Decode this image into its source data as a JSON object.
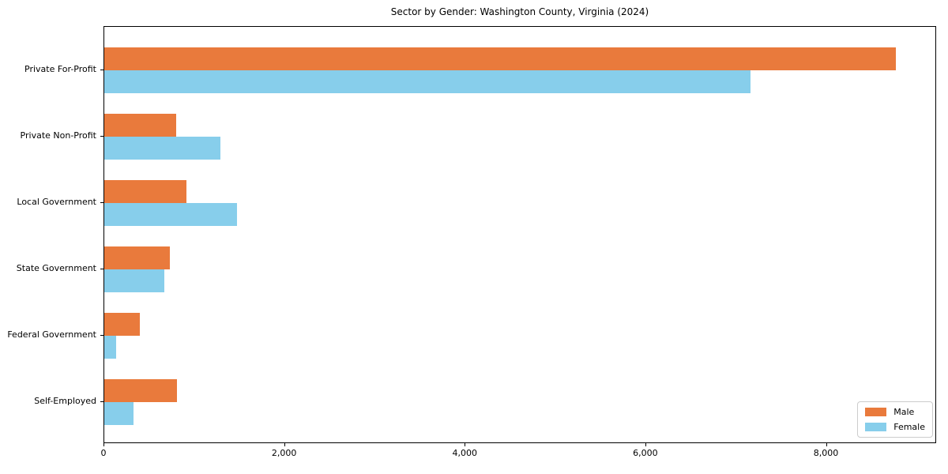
{
  "chart_data": {
    "type": "bar",
    "orientation": "horizontal",
    "title": "Sector by Gender: Washington County, Virginia (2024)",
    "xlabel": "",
    "ylabel": "",
    "grid": false,
    "categories": [
      "Private For-Profit",
      "Private Non-Profit",
      "Local Government",
      "State Government",
      "Federal Government",
      "Self-Employed"
    ],
    "series": [
      {
        "name": "Male",
        "color": "#e97a3c",
        "values": [
          8780,
          795,
          910,
          730,
          395,
          810
        ]
      },
      {
        "name": "Female",
        "color": "#87ceeb",
        "values": [
          7170,
          1290,
          1470,
          665,
          130,
          325
        ]
      }
    ],
    "xlim": [
      0,
      9220
    ],
    "xticks": [
      {
        "value": 0,
        "label": "0"
      },
      {
        "value": 2000,
        "label": "2,000"
      },
      {
        "value": 4000,
        "label": "4,000"
      },
      {
        "value": 6000,
        "label": "6,000"
      },
      {
        "value": 8000,
        "label": "8,000"
      }
    ],
    "legend": {
      "position": "lower right",
      "entries": [
        "Male",
        "Female"
      ]
    }
  },
  "colors": {
    "male": "#e97a3c",
    "female": "#87ceeb",
    "spine": "#000000",
    "background": "#ffffff",
    "legend_border": "#cccccc"
  }
}
